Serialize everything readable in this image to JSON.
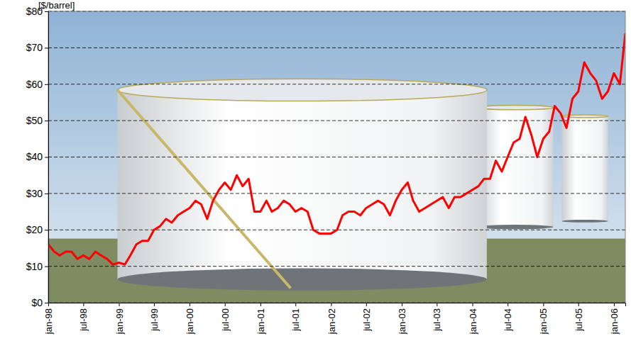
{
  "chart_data": {
    "type": "line",
    "ylabel": "[$/barrel]",
    "x": [
      "1998-01",
      "1998-02",
      "1998-03",
      "1998-04",
      "1998-05",
      "1998-06",
      "1998-07",
      "1998-08",
      "1998-09",
      "1998-10",
      "1998-11",
      "1998-12",
      "1999-01",
      "1999-02",
      "1999-03",
      "1999-04",
      "1999-05",
      "1999-06",
      "1999-07",
      "1999-08",
      "1999-09",
      "1999-10",
      "1999-11",
      "1999-12",
      "2000-01",
      "2000-02",
      "2000-03",
      "2000-04",
      "2000-05",
      "2000-06",
      "2000-07",
      "2000-08",
      "2000-09",
      "2000-10",
      "2000-11",
      "2000-12",
      "2001-01",
      "2001-02",
      "2001-03",
      "2001-04",
      "2001-05",
      "2001-06",
      "2001-07",
      "2001-08",
      "2001-09",
      "2001-10",
      "2001-11",
      "2001-12",
      "2002-01",
      "2002-02",
      "2002-03",
      "2002-04",
      "2002-05",
      "2002-06",
      "2002-07",
      "2002-08",
      "2002-09",
      "2002-10",
      "2002-11",
      "2002-12",
      "2003-01",
      "2003-02",
      "2003-03",
      "2003-04",
      "2003-05",
      "2003-06",
      "2003-07",
      "2003-08",
      "2003-09",
      "2003-10",
      "2003-11",
      "2003-12",
      "2004-01",
      "2004-02",
      "2004-03",
      "2004-04",
      "2004-05",
      "2004-06",
      "2004-07",
      "2004-08",
      "2004-09",
      "2004-10",
      "2004-11",
      "2004-12",
      "2005-01",
      "2005-02",
      "2005-03",
      "2005-04",
      "2005-05",
      "2005-06",
      "2005-07",
      "2005-08",
      "2005-09",
      "2005-10",
      "2005-11",
      "2005-12",
      "2006-01",
      "2006-02",
      "2006-03"
    ],
    "values": [
      16,
      14,
      13,
      14,
      14,
      12,
      13,
      12,
      14,
      13,
      12,
      10.5,
      11,
      10.5,
      13,
      16,
      17,
      17,
      20,
      21,
      23,
      22,
      24,
      25,
      26,
      28,
      27,
      23,
      28,
      31,
      33,
      31,
      35,
      32,
      34,
      25,
      25,
      28,
      25,
      26,
      28,
      27,
      25,
      26,
      25,
      20,
      19,
      19,
      19,
      20,
      24,
      25,
      25,
      24,
      26,
      27,
      28,
      27,
      24,
      28,
      31,
      33,
      28,
      25,
      26,
      27,
      28,
      29,
      26,
      29,
      29,
      30,
      31,
      32,
      34,
      34,
      39,
      36,
      40,
      44,
      45,
      51,
      46,
      40,
      45,
      47,
      54,
      52,
      48,
      56,
      58,
      66,
      63,
      61,
      56,
      58,
      63,
      60,
      74
    ],
    "color": "#ff0000",
    "xlim": [
      "1998-01",
      "2006-03"
    ],
    "xticks": [
      {
        "value": "1998-01",
        "label": "jan-98"
      },
      {
        "value": "1998-07",
        "label": "jul-98"
      },
      {
        "value": "1999-01",
        "label": "jan-99"
      },
      {
        "value": "1999-07",
        "label": "jul-99"
      },
      {
        "value": "2000-01",
        "label": "jan-00"
      },
      {
        "value": "2000-07",
        "label": "jul-00"
      },
      {
        "value": "2001-01",
        "label": "jan-01"
      },
      {
        "value": "2001-07",
        "label": "jul-01"
      },
      {
        "value": "2002-01",
        "label": "jan-02"
      },
      {
        "value": "2002-07",
        "label": "jul-02"
      },
      {
        "value": "2003-01",
        "label": "jan-03"
      },
      {
        "value": "2003-07",
        "label": "jul-03"
      },
      {
        "value": "2004-01",
        "label": "jan-04"
      },
      {
        "value": "2004-07",
        "label": "jul-04"
      },
      {
        "value": "2005-01",
        "label": "jan-05"
      },
      {
        "value": "2005-07",
        "label": "jul-05"
      },
      {
        "value": "2006-01",
        "label": "jan-06"
      }
    ],
    "ylim": [
      0,
      80
    ],
    "yticks": [
      {
        "value": 0,
        "label": "$0"
      },
      {
        "value": 10,
        "label": "$10"
      },
      {
        "value": 20,
        "label": "$20"
      },
      {
        "value": 30,
        "label": "$30"
      },
      {
        "value": 40,
        "label": "$40"
      },
      {
        "value": 50,
        "label": "$50"
      },
      {
        "value": 60,
        "label": "$60"
      },
      {
        "value": 70,
        "label": "$70"
      },
      {
        "value": 80,
        "label": "$80"
      }
    ],
    "grid": true
  }
}
